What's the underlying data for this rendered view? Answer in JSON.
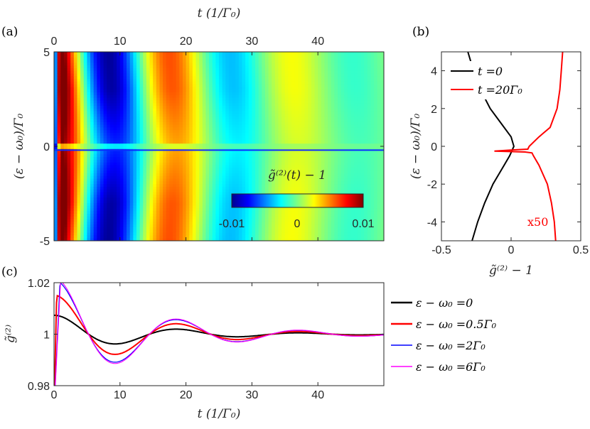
{
  "chart_data": [
    {
      "panel": "a",
      "type": "heatmap",
      "panel_label": "(a)",
      "xlabel": "t (1/Γ₀)",
      "ylabel": "(ε − ω₀)/Γ₀",
      "xlim": [
        0,
        50
      ],
      "ylim": [
        -5,
        5
      ],
      "xticks": [
        0,
        10,
        20,
        30,
        40
      ],
      "yticks": [
        -5,
        0,
        5
      ],
      "colorbar": {
        "label": "g̃⁽²⁾(t) − 1",
        "range": [
          -0.01,
          0.01
        ],
        "ticks": [
          "-0.01",
          "0",
          "0.01"
        ],
        "colormap": "jet"
      }
    },
    {
      "panel": "b",
      "type": "line",
      "panel_label": "(b)",
      "xlabel": "g̃⁽²⁾ − 1",
      "ylabel": "(ε − ω₀)/Γ₀",
      "xlim": [
        -0.5,
        0.5
      ],
      "ylim": [
        -5,
        5
      ],
      "xticks": [
        "-0.5",
        "0",
        "0.5"
      ],
      "yticks": [
        "-4",
        "-2",
        "0",
        "2",
        "4"
      ],
      "annotation": "x50",
      "series": [
        {
          "name": "t =0",
          "color": "#000000",
          "y": [
            -5,
            -4,
            -3,
            -2,
            -1,
            -0.5,
            0,
            0.5,
            1,
            2,
            3,
            4,
            5
          ],
          "x": [
            -0.28,
            -0.24,
            -0.19,
            -0.13,
            -0.05,
            -0.01,
            0.02,
            0.0,
            -0.05,
            -0.15,
            -0.22,
            -0.27,
            -0.31
          ]
        },
        {
          "name": "t =20Γ₀",
          "color": "#ff0000",
          "y": [
            -5,
            -4,
            -3,
            -2,
            -1,
            -0.5,
            -0.35,
            -0.3,
            -0.25,
            -0.2,
            -0.15,
            0,
            0.5,
            1,
            2,
            3,
            4,
            5
          ],
          "x": [
            0.32,
            0.31,
            0.29,
            0.26,
            0.2,
            0.16,
            0.15,
            0.1,
            -0.12,
            0.0,
            0.12,
            0.13,
            0.2,
            0.28,
            0.33,
            0.35,
            0.36,
            0.37
          ]
        }
      ]
    },
    {
      "panel": "c",
      "type": "line",
      "panel_label": "(c)",
      "xlabel": "t (1/Γ₀)",
      "ylabel": "g̃⁽²⁾",
      "xlim": [
        0,
        50
      ],
      "ylim": [
        0.98,
        1.02
      ],
      "xticks": [
        0,
        10,
        20,
        30,
        40
      ],
      "yticks": [
        "0.98",
        "1",
        "1.02"
      ],
      "series": [
        {
          "name": "ε − ω₀ =0",
          "color": "#000000",
          "amp": 0.0075,
          "rise": 0.0,
          "x": [
            0,
            5,
            10,
            15,
            20,
            25,
            30,
            35,
            40,
            45,
            50
          ]
        },
        {
          "name": "ε − ω₀ =0.5Γ₀",
          "color": "#ff0000",
          "amp": 0.0155,
          "rise": 0.4
        },
        {
          "name": "ε − ω₀ =2Γ₀",
          "color": "#0000ff",
          "amp": 0.0215,
          "rise": 0.9
        },
        {
          "name": "ε − ω₀ =6Γ₀",
          "color": "#ff00ff",
          "amp": 0.0225,
          "rise": 1.0
        }
      ]
    }
  ]
}
